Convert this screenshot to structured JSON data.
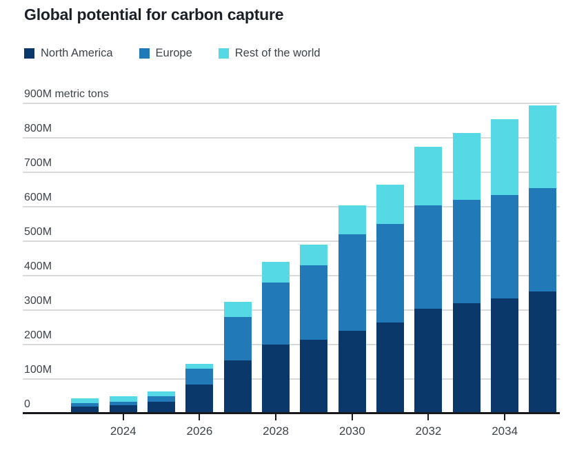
{
  "header": {
    "title": "Global potential for carbon capture"
  },
  "legend": {
    "items": [
      {
        "label": "North America",
        "color": "#0a386b"
      },
      {
        "label": "Europe",
        "color": "#2279b8"
      },
      {
        "label": "Rest of the world",
        "color": "#55d9e5"
      }
    ]
  },
  "chart_data": {
    "type": "bar",
    "stacked": true,
    "title": "Global potential for carbon capture",
    "value_unit": "million metric tons",
    "categories": [
      "2023",
      "2024",
      "2025",
      "2026",
      "2027",
      "2028",
      "2029",
      "2030",
      "2031",
      "2032",
      "2033",
      "2034",
      "2035"
    ],
    "series": [
      {
        "name": "North America",
        "color": "#0a386b",
        "values": [
          20,
          25,
          35,
          85,
          155,
          200,
          215,
          240,
          265,
          305,
          320,
          335,
          355
        ]
      },
      {
        "name": "Europe",
        "color": "#2279b8",
        "values": [
          10,
          10,
          15,
          45,
          125,
          180,
          215,
          280,
          285,
          300,
          300,
          300,
          300
        ]
      },
      {
        "name": "Rest of the world",
        "color": "#55d9e5",
        "values": [
          15,
          15,
          15,
          15,
          45,
          60,
          60,
          85,
          115,
          170,
          195,
          220,
          240
        ]
      }
    ],
    "stacked_totals": [
      45,
      50,
      65,
      145,
      325,
      440,
      490,
      605,
      665,
      775,
      815,
      855,
      895
    ],
    "y_axis": {
      "min": 0,
      "max": 900,
      "tick_step": 100,
      "tick_labels": [
        "0",
        "100M",
        "200M",
        "300M",
        "400M",
        "500M",
        "600M",
        "700M",
        "800M",
        "900M metric tons"
      ]
    },
    "x_axis": {
      "labeled_categories": [
        "2024",
        "2026",
        "2028",
        "2030",
        "2032",
        "2034"
      ]
    },
    "grid": true,
    "legend_position": "top"
  }
}
